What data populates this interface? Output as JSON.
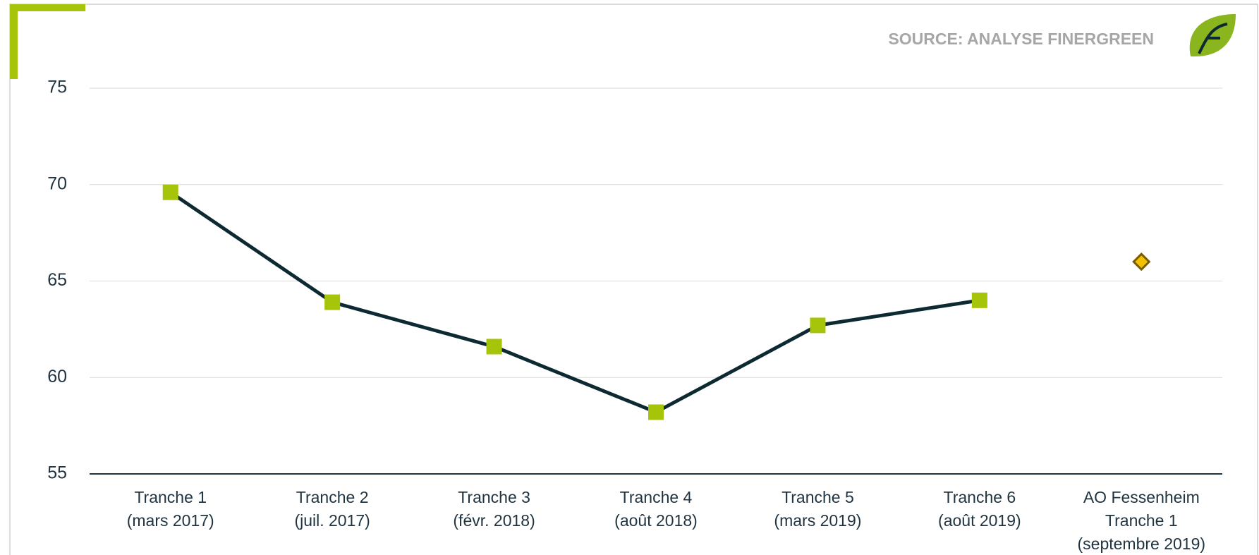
{
  "chart_data": {
    "type": "line",
    "source": "SOURCE: ANALYSE FINERGREEN",
    "categories": [
      [
        "Tranche 1",
        "(mars 2017)"
      ],
      [
        "Tranche 2",
        "(juil. 2017)"
      ],
      [
        "Tranche 3",
        "(févr. 2018)"
      ],
      [
        "Tranche 4",
        "(août 2018)"
      ],
      [
        "Tranche 5",
        "(mars 2019)"
      ],
      [
        "Tranche 6",
        "(août 2019)"
      ],
      [
        "AO Fessenheim",
        "Tranche 1",
        "(septembre 2019)"
      ]
    ],
    "series": [
      {
        "color": "#a6c40a",
        "line_color": "#0d2a33",
        "marker": "square",
        "values": [
          69.6,
          63.9,
          61.6,
          58.2,
          62.7,
          64.0,
          null
        ]
      },
      {
        "color": "#f2c200",
        "line_color": "#7a5c00",
        "marker": "diamond",
        "values": [
          null,
          null,
          null,
          null,
          null,
          null,
          66.0
        ]
      }
    ],
    "ylim": [
      55,
      75
    ],
    "yticks": [
      55,
      60,
      65,
      70,
      75
    ],
    "grid": true
  }
}
